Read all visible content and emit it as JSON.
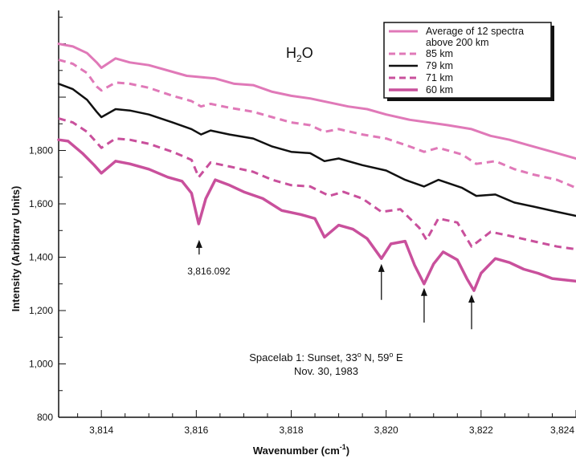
{
  "chart_data": {
    "type": "line",
    "title": "",
    "molecule_label": "H",
    "molecule_sub": "2",
    "molecule_tail": "O",
    "xlabel": "Wavenumber (cm",
    "xlabel_sup": "-1",
    "xlabel_tail": ")",
    "ylabel": "Intensity (Arbitrary Units)",
    "xlim": [
      3813.1,
      3824.0
    ],
    "ylim": [
      800,
      2325
    ],
    "x_ticks": [
      3814,
      3816,
      3818,
      3820,
      3822,
      3824
    ],
    "x_tick_labels": [
      "3,814",
      "3,816",
      "3,818",
      "3,820",
      "3,822",
      "3,824"
    ],
    "y_ticks": [
      800,
      1000,
      1200,
      1400,
      1600,
      1800
    ],
    "y_tick_labels": [
      "800",
      "1,000",
      "1,200",
      "1,400",
      "1,600",
      "1,800"
    ],
    "grid": false,
    "legend_position": "top-right",
    "legend": [
      {
        "text": "Average of 12 spectra",
        "text2": "above 200 km",
        "style": "solid",
        "color": "#e079b8",
        "width": 3
      },
      {
        "text": "85 km",
        "style": "dashed",
        "color": "#e079b8",
        "width": 3
      },
      {
        "text": "79 km",
        "style": "solid",
        "color": "#111111",
        "width": 2.5
      },
      {
        "text": "71 km",
        "style": "dashed",
        "color": "#c9509c",
        "width": 3
      },
      {
        "text": "60 km",
        "style": "solid",
        "color": "#c9509c",
        "width": 3.5
      }
    ],
    "series": [
      {
        "name": "Average of 12 spectra above 200 km",
        "style": "solid",
        "color": "#e079b8",
        "width": 3,
        "x": [
          3813.1,
          3813.4,
          3813.7,
          3813.9,
          3814.0,
          3814.3,
          3814.6,
          3815.0,
          3815.5,
          3815.8,
          3816.1,
          3816.4,
          3816.8,
          3817.2,
          3817.6,
          3818.0,
          3818.4,
          3818.8,
          3819.2,
          3819.6,
          3820.0,
          3820.5,
          3820.9,
          3821.3,
          3821.8,
          3822.2,
          3822.6,
          3823.0,
          3823.5,
          3824.0
        ],
        "y": [
          2200,
          2190,
          2165,
          2130,
          2110,
          2145,
          2130,
          2120,
          2095,
          2080,
          2075,
          2070,
          2050,
          2045,
          2020,
          2005,
          1995,
          1980,
          1965,
          1955,
          1935,
          1915,
          1905,
          1895,
          1880,
          1855,
          1840,
          1820,
          1795,
          1770
        ]
      },
      {
        "name": "85 km",
        "style": "dashed",
        "color": "#e079b8",
        "width": 3,
        "x": [
          3813.1,
          3813.4,
          3813.7,
          3813.9,
          3814.0,
          3814.3,
          3814.6,
          3815.0,
          3815.5,
          3815.9,
          3816.1,
          3816.3,
          3816.7,
          3817.2,
          3817.6,
          3818.0,
          3818.4,
          3818.7,
          3819.0,
          3819.5,
          3820.0,
          3820.5,
          3820.8,
          3821.1,
          3821.6,
          3821.9,
          3822.3,
          3822.7,
          3823.1,
          3823.6,
          3824.0
        ],
        "y": [
          2140,
          2125,
          2090,
          2040,
          2025,
          2055,
          2050,
          2035,
          2005,
          1985,
          1965,
          1975,
          1960,
          1945,
          1925,
          1905,
          1895,
          1870,
          1880,
          1860,
          1845,
          1815,
          1795,
          1810,
          1785,
          1750,
          1760,
          1730,
          1710,
          1690,
          1660
        ]
      },
      {
        "name": "79 km",
        "style": "solid",
        "color": "#111111",
        "width": 2.5,
        "x": [
          3813.1,
          3813.4,
          3813.7,
          3813.9,
          3814.0,
          3814.3,
          3814.6,
          3815.0,
          3815.5,
          3815.9,
          3816.1,
          3816.3,
          3816.7,
          3817.2,
          3817.6,
          3818.0,
          3818.4,
          3818.7,
          3819.0,
          3819.5,
          3820.0,
          3820.4,
          3820.8,
          3821.1,
          3821.6,
          3821.9,
          3822.3,
          3822.7,
          3823.1,
          3823.6,
          3824.0
        ],
        "y": [
          2050,
          2030,
          1990,
          1945,
          1925,
          1955,
          1950,
          1935,
          1905,
          1880,
          1860,
          1875,
          1860,
          1845,
          1815,
          1795,
          1790,
          1760,
          1770,
          1745,
          1725,
          1690,
          1665,
          1690,
          1660,
          1630,
          1635,
          1605,
          1590,
          1570,
          1555
        ]
      },
      {
        "name": "71 km",
        "style": "dashed",
        "color": "#c9509c",
        "width": 3,
        "x": [
          3813.1,
          3813.4,
          3813.7,
          3813.9,
          3814.0,
          3814.3,
          3814.6,
          3815.0,
          3815.5,
          3815.9,
          3816.05,
          3816.3,
          3816.7,
          3817.2,
          3817.6,
          3818.0,
          3818.4,
          3818.8,
          3819.1,
          3819.5,
          3819.9,
          3820.3,
          3820.7,
          3820.85,
          3821.1,
          3821.5,
          3821.8,
          3822.2,
          3822.6,
          3823.1,
          3823.6,
          3824.0
        ],
        "y": [
          1920,
          1905,
          1870,
          1830,
          1810,
          1845,
          1840,
          1825,
          1795,
          1765,
          1700,
          1755,
          1740,
          1720,
          1690,
          1670,
          1665,
          1630,
          1645,
          1620,
          1570,
          1580,
          1510,
          1465,
          1545,
          1530,
          1440,
          1495,
          1480,
          1460,
          1440,
          1430
        ]
      },
      {
        "name": "60 km",
        "style": "solid",
        "color": "#c9509c",
        "width": 3.5,
        "x": [
          3813.1,
          3813.3,
          3813.6,
          3813.85,
          3814.0,
          3814.3,
          3814.6,
          3815.0,
          3815.4,
          3815.7,
          3815.9,
          3816.05,
          3816.2,
          3816.4,
          3816.7,
          3817.0,
          3817.4,
          3817.8,
          3818.2,
          3818.5,
          3818.7,
          3819.0,
          3819.3,
          3819.6,
          3819.9,
          3820.1,
          3820.4,
          3820.6,
          3820.8,
          3821.0,
          3821.2,
          3821.5,
          3821.7,
          3821.85,
          3822.0,
          3822.3,
          3822.6,
          3822.9,
          3823.2,
          3823.5,
          3824.0
        ],
        "y": [
          1840,
          1835,
          1790,
          1745,
          1715,
          1760,
          1750,
          1730,
          1700,
          1685,
          1640,
          1525,
          1620,
          1690,
          1670,
          1645,
          1620,
          1575,
          1560,
          1545,
          1475,
          1520,
          1505,
          1470,
          1395,
          1450,
          1460,
          1370,
          1300,
          1375,
          1420,
          1390,
          1320,
          1275,
          1340,
          1395,
          1380,
          1355,
          1340,
          1320,
          1310
        ]
      }
    ],
    "annotations": {
      "peak_label": "3,816.092",
      "arrows": [
        {
          "x": 3816.06,
          "y_top": 1465,
          "y_bottom": 1410
        },
        {
          "x": 3819.9,
          "y_top": 1375,
          "y_bottom": 1240
        },
        {
          "x": 3820.8,
          "y_top": 1285,
          "y_bottom": 1155
        },
        {
          "x": 3821.8,
          "y_top": 1260,
          "y_bottom": 1130
        }
      ],
      "note_line1_pre": "Spacelab 1: Sunset, 33",
      "note_line1_sup1": "o",
      "note_line1_mid": " N, 59",
      "note_line1_sup2": "o",
      "note_line1_post": " E",
      "note_line2": "Nov. 30, 1983"
    }
  }
}
